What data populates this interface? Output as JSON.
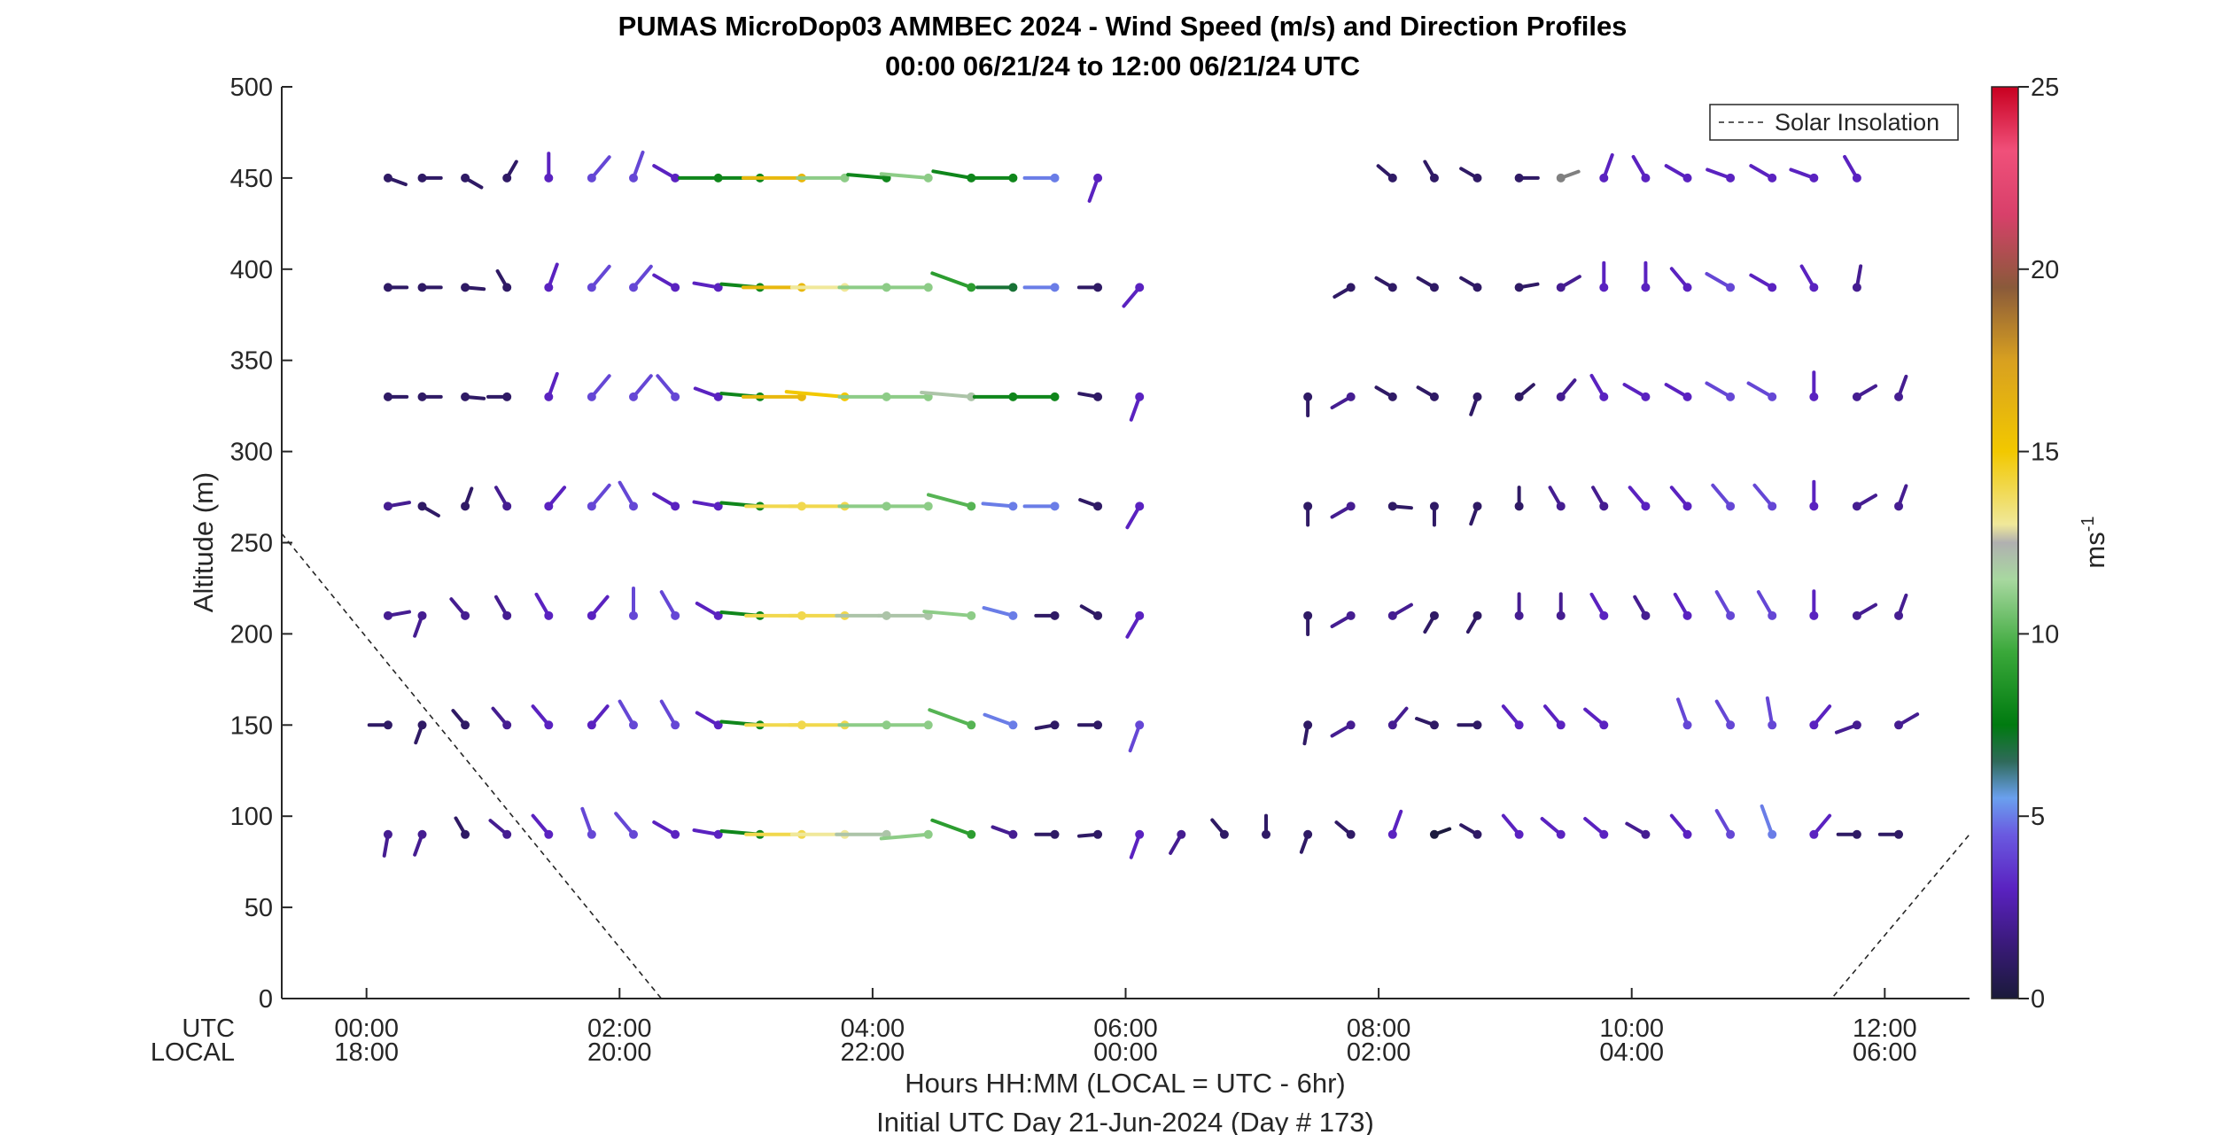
{
  "chart_data": {
    "type": "scatter",
    "title": "PUMAS MicroDop03 AMMBEC 2024 - Wind Speed (m/s) and Direction Profiles",
    "subtitle": "00:00 06/21/24 to 12:00 06/21/24  UTC",
    "ylabel": "Altitude (m)",
    "xlabel": "Hours HH:MM  (LOCAL = UTC - 6hr)",
    "xlabel2": "Initial UTC Day 21-Jun-2024 (Day # 173)",
    "x_row_labels": [
      "UTC",
      "LOCAL"
    ],
    "x_ticks": [
      {
        "hour": 0,
        "utc": "00:00",
        "local": "18:00"
      },
      {
        "hour": 2,
        "utc": "02:00",
        "local": "20:00"
      },
      {
        "hour": 4,
        "utc": "04:00",
        "local": "22:00"
      },
      {
        "hour": 6,
        "utc": "06:00",
        "local": "00:00"
      },
      {
        "hour": 8,
        "utc": "08:00",
        "local": "02:00"
      },
      {
        "hour": 10,
        "utc": "10:00",
        "local": "04:00"
      },
      {
        "hour": 12,
        "utc": "12:00",
        "local": "06:00"
      }
    ],
    "xlim_hours": [
      -0.67,
      12.67
    ],
    "ylim": [
      0,
      500
    ],
    "y_ticks": [
      0,
      50,
      100,
      150,
      200,
      250,
      300,
      350,
      400,
      450,
      500
    ],
    "colorbar": {
      "label": "ms",
      "label_exponent": "-1",
      "range": [
        0,
        25
      ],
      "ticks": [
        0,
        5,
        10,
        15,
        20,
        25
      ]
    },
    "legend": {
      "position": "top-right",
      "entries": [
        "Solar Insolation"
      ]
    },
    "solar_insolation": {
      "style": "dashed",
      "x_hours": [
        -0.67,
        2.33,
        11.58,
        12.67
      ],
      "altitude_scale": [
        255,
        0,
        0,
        90
      ]
    },
    "barb_layout": "dot marks each measurement; line points away in the wind-direction angle, length proportional to speed",
    "wind_profiles": [
      {
        "altitude": 90,
        "samples": [
          [
            0.17,
            2,
            190
          ],
          [
            0.44,
            2,
            200
          ],
          [
            0.78,
            1,
            330
          ],
          [
            1.11,
            2,
            310
          ],
          [
            1.44,
            3,
            320
          ],
          [
            1.78,
            4,
            340
          ],
          [
            2.11,
            4,
            320
          ],
          [
            2.44,
            3,
            300
          ],
          [
            2.78,
            3,
            280
          ],
          [
            3.11,
            8,
            275
          ],
          [
            3.44,
            14,
            270
          ],
          [
            3.78,
            13,
            270
          ],
          [
            4.11,
            12,
            270
          ],
          [
            4.44,
            11,
            265
          ],
          [
            4.78,
            9,
            290
          ],
          [
            5.11,
            2,
            290
          ],
          [
            5.44,
            1,
            270
          ],
          [
            5.78,
            1,
            265
          ],
          [
            6.11,
            3,
            200
          ],
          [
            6.44,
            2,
            210
          ],
          [
            6.78,
            1,
            320
          ],
          [
            7.11,
            1,
            360
          ],
          [
            7.44,
            1,
            200
          ],
          [
            7.78,
            1,
            310
          ],
          [
            8.11,
            3,
            20
          ],
          [
            8.44,
            0.1,
            70
          ],
          [
            8.78,
            1,
            300
          ],
          [
            9.11,
            3,
            320
          ],
          [
            9.44,
            3,
            310
          ],
          [
            9.78,
            3,
            310
          ],
          [
            10.11,
            2,
            300
          ],
          [
            10.44,
            3,
            320
          ],
          [
            10.78,
            4,
            330
          ],
          [
            11.11,
            5,
            340
          ],
          [
            11.44,
            3,
            40
          ],
          [
            11.78,
            1,
            270
          ],
          [
            12.11,
            1,
            270
          ]
        ]
      },
      {
        "altitude": 150,
        "samples": [
          [
            0.17,
            1,
            270
          ],
          [
            0.44,
            1,
            200
          ],
          [
            0.78,
            1,
            320
          ],
          [
            1.11,
            2,
            320
          ],
          [
            1.44,
            3,
            320
          ],
          [
            1.78,
            3,
            40
          ],
          [
            2.11,
            4,
            330
          ],
          [
            2.44,
            4,
            330
          ],
          [
            2.78,
            3,
            300
          ],
          [
            3.11,
            8,
            275
          ],
          [
            3.44,
            14,
            270
          ],
          [
            3.78,
            14,
            270
          ],
          [
            4.11,
            11,
            270
          ],
          [
            4.44,
            11,
            270
          ],
          [
            4.78,
            10,
            290
          ],
          [
            5.11,
            5,
            290
          ],
          [
            5.44,
            1,
            260
          ],
          [
            5.78,
            1,
            270
          ],
          [
            6.11,
            4,
            200
          ],
          [
            7.44,
            1,
            190
          ],
          [
            7.78,
            2,
            240
          ],
          [
            8.11,
            2,
            40
          ],
          [
            8.44,
            1,
            290
          ],
          [
            8.78,
            1,
            270
          ],
          [
            9.11,
            3,
            320
          ],
          [
            9.44,
            3,
            320
          ],
          [
            9.78,
            3,
            310
          ],
          [
            10.44,
            4,
            340
          ],
          [
            10.78,
            4,
            330
          ],
          [
            11.11,
            4,
            350
          ],
          [
            11.44,
            3,
            40
          ],
          [
            11.78,
            2,
            250
          ],
          [
            12.11,
            2,
            60
          ]
        ]
      },
      {
        "altitude": 210,
        "samples": [
          [
            0.17,
            2,
            80
          ],
          [
            0.44,
            2,
            200
          ],
          [
            0.78,
            2,
            320
          ],
          [
            1.11,
            2,
            330
          ],
          [
            1.44,
            3,
            330
          ],
          [
            1.78,
            3,
            40
          ],
          [
            2.11,
            4,
            360
          ],
          [
            2.44,
            4,
            330
          ],
          [
            2.78,
            3,
            300
          ],
          [
            3.11,
            8,
            275
          ],
          [
            3.44,
            14,
            270
          ],
          [
            3.78,
            14,
            270
          ],
          [
            4.11,
            12,
            270
          ],
          [
            4.44,
            12,
            270
          ],
          [
            4.78,
            11,
            275
          ],
          [
            5.11,
            5,
            285
          ],
          [
            5.44,
            1,
            270
          ],
          [
            5.78,
            1,
            300
          ],
          [
            6.11,
            3,
            210
          ],
          [
            7.44,
            1,
            180
          ],
          [
            7.78,
            2,
            240
          ],
          [
            8.11,
            2,
            60
          ],
          [
            8.44,
            1,
            210
          ],
          [
            8.78,
            1,
            210
          ],
          [
            9.11,
            2,
            360
          ],
          [
            9.44,
            2,
            360
          ],
          [
            9.78,
            3,
            330
          ],
          [
            10.11,
            2,
            330
          ],
          [
            10.44,
            3,
            330
          ],
          [
            10.78,
            4,
            330
          ],
          [
            11.11,
            4,
            330
          ],
          [
            11.44,
            3,
            360
          ],
          [
            11.78,
            2,
            60
          ],
          [
            12.11,
            2,
            20
          ]
        ]
      },
      {
        "altitude": 270,
        "samples": [
          [
            0.17,
            2,
            80
          ],
          [
            0.44,
            1,
            120
          ],
          [
            0.78,
            1,
            20
          ],
          [
            1.11,
            2,
            330
          ],
          [
            1.44,
            3,
            40
          ],
          [
            1.78,
            4,
            40
          ],
          [
            2.11,
            4,
            330
          ],
          [
            2.44,
            3,
            300
          ],
          [
            2.78,
            3,
            280
          ],
          [
            3.11,
            8,
            275
          ],
          [
            3.44,
            14,
            270
          ],
          [
            3.78,
            14,
            270
          ],
          [
            4.11,
            11,
            270
          ],
          [
            4.44,
            11,
            270
          ],
          [
            4.78,
            10,
            285
          ],
          [
            5.11,
            5,
            275
          ],
          [
            5.44,
            5,
            270
          ],
          [
            5.78,
            1,
            290
          ],
          [
            6.11,
            3,
            210
          ],
          [
            7.44,
            1,
            180
          ],
          [
            7.78,
            2,
            240
          ],
          [
            8.11,
            1,
            95
          ],
          [
            8.44,
            1,
            180
          ],
          [
            8.78,
            1,
            200
          ],
          [
            9.11,
            1,
            360
          ],
          [
            9.44,
            2,
            330
          ],
          [
            9.78,
            2,
            330
          ],
          [
            10.11,
            3,
            320
          ],
          [
            10.44,
            3,
            320
          ],
          [
            10.78,
            4,
            320
          ],
          [
            11.11,
            4,
            320
          ],
          [
            11.44,
            3,
            360
          ],
          [
            11.78,
            2,
            60
          ],
          [
            12.11,
            2,
            20
          ]
        ]
      },
      {
        "altitude": 330,
        "samples": [
          [
            0.17,
            1,
            90
          ],
          [
            0.44,
            1,
            90
          ],
          [
            0.78,
            1,
            95
          ],
          [
            1.11,
            1,
            270
          ],
          [
            1.44,
            3,
            20
          ],
          [
            1.78,
            4,
            40
          ],
          [
            2.11,
            4,
            40
          ],
          [
            2.44,
            4,
            320
          ],
          [
            2.78,
            3,
            290
          ],
          [
            3.11,
            8,
            275
          ],
          [
            3.44,
            16,
            270
          ],
          [
            3.78,
            15,
            275
          ],
          [
            4.11,
            11,
            270
          ],
          [
            4.44,
            11,
            270
          ],
          [
            4.78,
            12,
            275
          ],
          [
            5.11,
            8,
            270
          ],
          [
            5.44,
            8,
            270
          ],
          [
            5.78,
            1,
            280
          ],
          [
            6.11,
            3,
            200
          ],
          [
            7.44,
            1,
            180
          ],
          [
            7.78,
            2,
            240
          ],
          [
            8.11,
            1,
            300
          ],
          [
            8.44,
            1,
            300
          ],
          [
            8.78,
            1,
            200
          ],
          [
            9.11,
            1,
            50
          ],
          [
            9.44,
            2,
            40
          ],
          [
            9.78,
            3,
            330
          ],
          [
            10.11,
            3,
            300
          ],
          [
            10.44,
            3,
            300
          ],
          [
            10.78,
            4,
            300
          ],
          [
            11.11,
            4,
            300
          ],
          [
            11.44,
            3,
            360
          ],
          [
            11.78,
            2,
            60
          ],
          [
            12.11,
            2,
            20
          ]
        ]
      },
      {
        "altitude": 390,
        "samples": [
          [
            0.17,
            1,
            90
          ],
          [
            0.44,
            1,
            90
          ],
          [
            0.78,
            1,
            95
          ],
          [
            1.11,
            1,
            330
          ],
          [
            1.44,
            3,
            20
          ],
          [
            1.78,
            4,
            40
          ],
          [
            2.11,
            4,
            40
          ],
          [
            2.44,
            3,
            300
          ],
          [
            2.78,
            3,
            280
          ],
          [
            3.11,
            8,
            275
          ],
          [
            3.44,
            16,
            270
          ],
          [
            3.78,
            13,
            270
          ],
          [
            4.11,
            11,
            270
          ],
          [
            4.44,
            11,
            270
          ],
          [
            4.78,
            9,
            290
          ],
          [
            5.11,
            7,
            270
          ],
          [
            5.44,
            5,
            270
          ],
          [
            5.78,
            1,
            270
          ],
          [
            6.11,
            3,
            220
          ],
          [
            7.78,
            1,
            240
          ],
          [
            8.11,
            1,
            300
          ],
          [
            8.44,
            1,
            300
          ],
          [
            8.78,
            1,
            300
          ],
          [
            9.11,
            1,
            80
          ],
          [
            9.44,
            2,
            60
          ],
          [
            9.78,
            3,
            360
          ],
          [
            10.11,
            3,
            360
          ],
          [
            10.44,
            3,
            320
          ],
          [
            10.78,
            4,
            300
          ],
          [
            11.11,
            3,
            300
          ],
          [
            11.44,
            3,
            330
          ],
          [
            11.78,
            2,
            10
          ]
        ]
      },
      {
        "altitude": 450,
        "samples": [
          [
            0.17,
            1,
            110
          ],
          [
            0.44,
            1,
            90
          ],
          [
            0.78,
            1,
            120
          ],
          [
            1.11,
            1,
            30
          ],
          [
            1.44,
            3,
            360
          ],
          [
            1.78,
            4,
            40
          ],
          [
            2.11,
            4,
            20
          ],
          [
            2.44,
            3,
            300
          ],
          [
            2.78,
            8,
            270
          ],
          [
            3.11,
            8,
            270
          ],
          [
            3.44,
            16,
            270
          ],
          [
            3.78,
            11,
            270
          ],
          [
            4.11,
            8,
            275
          ],
          [
            4.44,
            11,
            275
          ],
          [
            4.78,
            8,
            280
          ],
          [
            5.11,
            8,
            270
          ],
          [
            5.44,
            5,
            270
          ],
          [
            5.78,
            3,
            200
          ],
          [
            8.11,
            1,
            310
          ],
          [
            8.44,
            1,
            330
          ],
          [
            8.78,
            1,
            300
          ],
          [
            9.11,
            1,
            90
          ],
          [
            9.44,
            1,
            70
          ],
          [
            9.78,
            3,
            20
          ],
          [
            10.11,
            3,
            330
          ],
          [
            10.44,
            3,
            300
          ],
          [
            10.78,
            3,
            290
          ],
          [
            11.11,
            3,
            300
          ],
          [
            11.44,
            3,
            290
          ],
          [
            11.78,
            3,
            330
          ]
        ]
      }
    ]
  }
}
